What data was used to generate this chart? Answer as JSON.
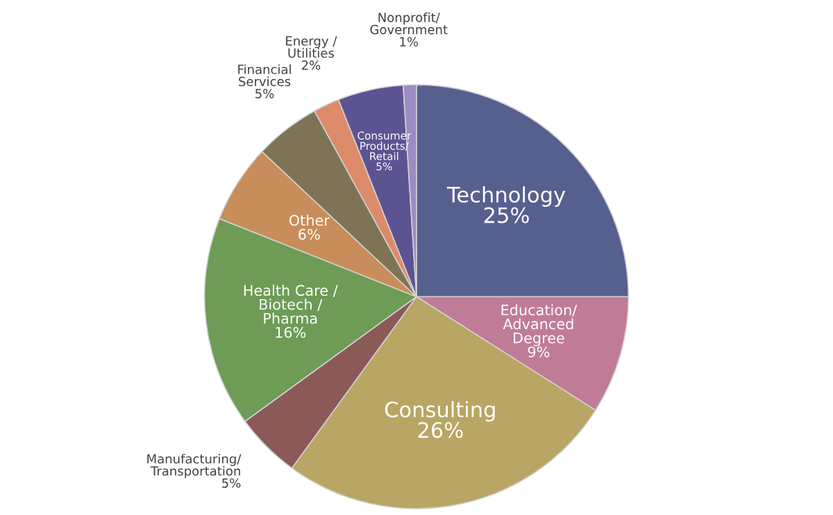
{
  "chart_data": {
    "type": "pie",
    "categories": [
      "Technology",
      "Education/\nAdvanced\nDegree",
      "Consulting",
      "Manufacturing/\nTransportation",
      "Health Care /\nBiotech /\nPharma",
      "Other",
      "Financial\nServices",
      "Energy /\nUtilities",
      "Consumer\nProducts/\nRetail",
      "Nonprofit/\nGovernment"
    ],
    "values": [
      25,
      9,
      26,
      5,
      16,
      6,
      5,
      2,
      5,
      1
    ],
    "colors": [
      "#56608e",
      "#c07b97",
      "#b9a564",
      "#8c5959",
      "#6e9b56",
      "#c98d5b",
      "#7e7455",
      "#dd8a6a",
      "#5c5392",
      "#9d8cc2"
    ],
    "value_labels": [
      "25%",
      "9%",
      "26%",
      "5%",
      "16%",
      "6%",
      "5%",
      "2%",
      "5%",
      "1%"
    ]
  }
}
